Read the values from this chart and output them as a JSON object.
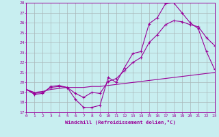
{
  "xlabel": "Windchill (Refroidissement éolien,°C)",
  "background_color": "#c8eef0",
  "grid_color": "#aab8ba",
  "line_color": "#990099",
  "ylim": [
    17,
    28
  ],
  "xlim": [
    0,
    23
  ],
  "yticks": [
    17,
    18,
    19,
    20,
    21,
    22,
    23,
    24,
    25,
    26,
    27,
    28
  ],
  "xticks": [
    0,
    1,
    2,
    3,
    4,
    5,
    6,
    7,
    8,
    9,
    10,
    11,
    12,
    13,
    14,
    15,
    16,
    17,
    18,
    19,
    20,
    21,
    22,
    23
  ],
  "x": [
    0,
    1,
    2,
    3,
    4,
    5,
    6,
    7,
    8,
    9,
    10,
    11,
    12,
    13,
    14,
    15,
    16,
    17,
    18,
    19,
    20,
    21,
    22,
    23
  ],
  "y_windchill": [
    19.3,
    18.8,
    18.9,
    19.6,
    19.7,
    19.5,
    18.3,
    17.5,
    17.5,
    17.7,
    20.5,
    20.0,
    21.5,
    22.9,
    23.1,
    25.9,
    26.5,
    27.9,
    28.0,
    27.0,
    26.0,
    25.4,
    23.1,
    21.3
  ],
  "y_temp": [
    19.3,
    19.0,
    19.1,
    19.3,
    19.4,
    19.5,
    19.5,
    19.5,
    19.6,
    19.6,
    19.7,
    19.8,
    19.9,
    20.0,
    20.1,
    20.2,
    20.3,
    20.4,
    20.5,
    20.6,
    20.7,
    20.8,
    20.9,
    21.0
  ],
  "y_middle": [
    19.3,
    18.9,
    19.0,
    19.5,
    19.6,
    19.5,
    18.9,
    18.5,
    19.0,
    18.9,
    20.1,
    20.4,
    21.2,
    22.0,
    22.5,
    24.0,
    24.8,
    25.8,
    26.2,
    26.1,
    25.8,
    25.6,
    24.5,
    23.7
  ]
}
